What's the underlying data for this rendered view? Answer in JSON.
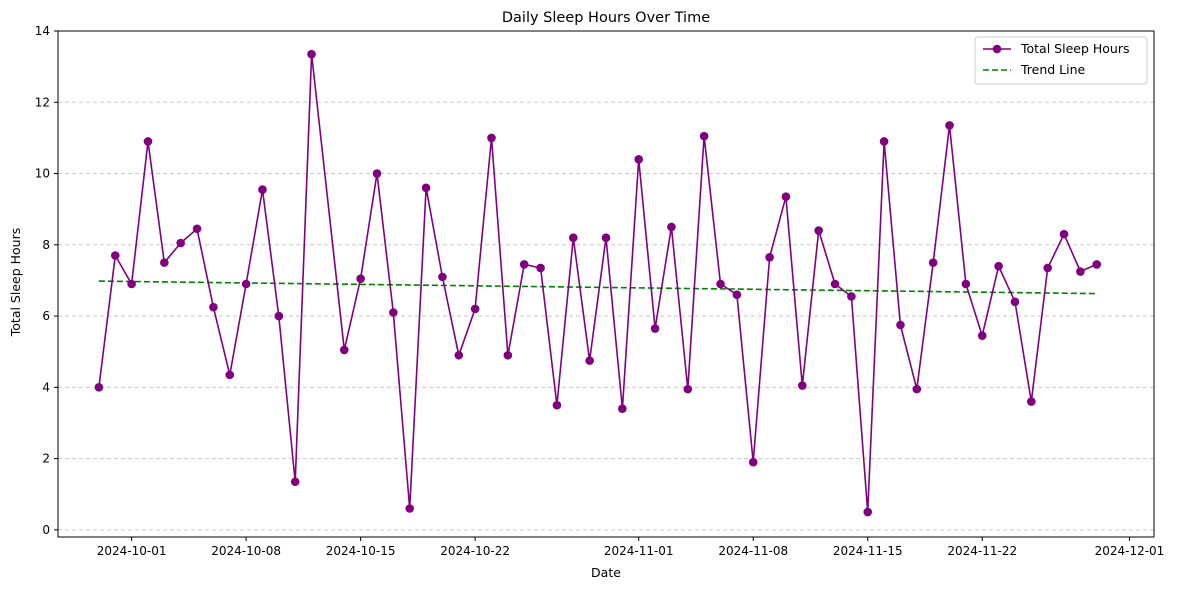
{
  "chart_data": {
    "type": "line",
    "title": "Daily Sleep Hours Over Time",
    "xlabel": "Date",
    "ylabel": "Total Sleep Hours",
    "x_start": "2024-09-29",
    "xlim": [
      "2024-09-26T12:00",
      "2024-12-02T12:00"
    ],
    "ylim": [
      -0.2,
      14
    ],
    "y_ticks": [
      0,
      2,
      4,
      6,
      8,
      10,
      12,
      14
    ],
    "x_ticks": [
      "2024-10-01",
      "2024-10-08",
      "2024-10-15",
      "2024-10-22",
      "2024-11-01",
      "2024-11-08",
      "2024-11-15",
      "2024-11-22",
      "2024-12-01"
    ],
    "grid": "y-dashed",
    "legend_position": "top-right",
    "series": [
      {
        "name": "Total Sleep Hours",
        "color": "#800080",
        "style": "line-marker",
        "dates": [
          "2024-09-29",
          "2024-09-30",
          "2024-10-01",
          "2024-10-02",
          "2024-10-03",
          "2024-10-04",
          "2024-10-05",
          "2024-10-06",
          "2024-10-07",
          "2024-10-08",
          "2024-10-09",
          "2024-10-10",
          "2024-10-11",
          "2024-10-12",
          "2024-10-14",
          "2024-10-15",
          "2024-10-16",
          "2024-10-17",
          "2024-10-18",
          "2024-10-19",
          "2024-10-20",
          "2024-10-21",
          "2024-10-22",
          "2024-10-23",
          "2024-10-24",
          "2024-10-25",
          "2024-10-26",
          "2024-10-27",
          "2024-10-28",
          "2024-10-29",
          "2024-10-30",
          "2024-10-31",
          "2024-11-01",
          "2024-11-02",
          "2024-11-03",
          "2024-11-04",
          "2024-11-05",
          "2024-11-06",
          "2024-11-07",
          "2024-11-08",
          "2024-11-09",
          "2024-11-10",
          "2024-11-11",
          "2024-11-12",
          "2024-11-13",
          "2024-11-14",
          "2024-11-15",
          "2024-11-16",
          "2024-11-17",
          "2024-11-18",
          "2024-11-19",
          "2024-11-20",
          "2024-11-21",
          "2024-11-22",
          "2024-11-23",
          "2024-11-24",
          "2024-11-25",
          "2024-11-26",
          "2024-11-27",
          "2024-11-28",
          "2024-11-29"
        ],
        "values": [
          4.0,
          7.7,
          6.9,
          10.9,
          7.5,
          8.05,
          8.45,
          6.25,
          4.35,
          6.9,
          9.55,
          6.0,
          1.35,
          13.35,
          5.05,
          7.05,
          10.0,
          6.1,
          0.6,
          9.6,
          7.1,
          4.9,
          6.2,
          11.0,
          4.9,
          7.45,
          7.35,
          3.5,
          8.2,
          4.75,
          8.2,
          3.4,
          10.4,
          5.65,
          8.5,
          3.95,
          11.05,
          6.9,
          6.6,
          1.9,
          7.65,
          9.35,
          4.05,
          8.4,
          6.9,
          6.55,
          0.5,
          10.9,
          5.75,
          3.95,
          7.5,
          11.35,
          6.9,
          5.45,
          7.4,
          6.4,
          3.6,
          7.35,
          8.3,
          7.25,
          7.45
        ]
      },
      {
        "name": "Trend Line",
        "color": "#008000",
        "style": "dashed",
        "dates": [
          "2024-09-29",
          "2024-11-29"
        ],
        "values": [
          6.98,
          6.63
        ]
      }
    ]
  }
}
